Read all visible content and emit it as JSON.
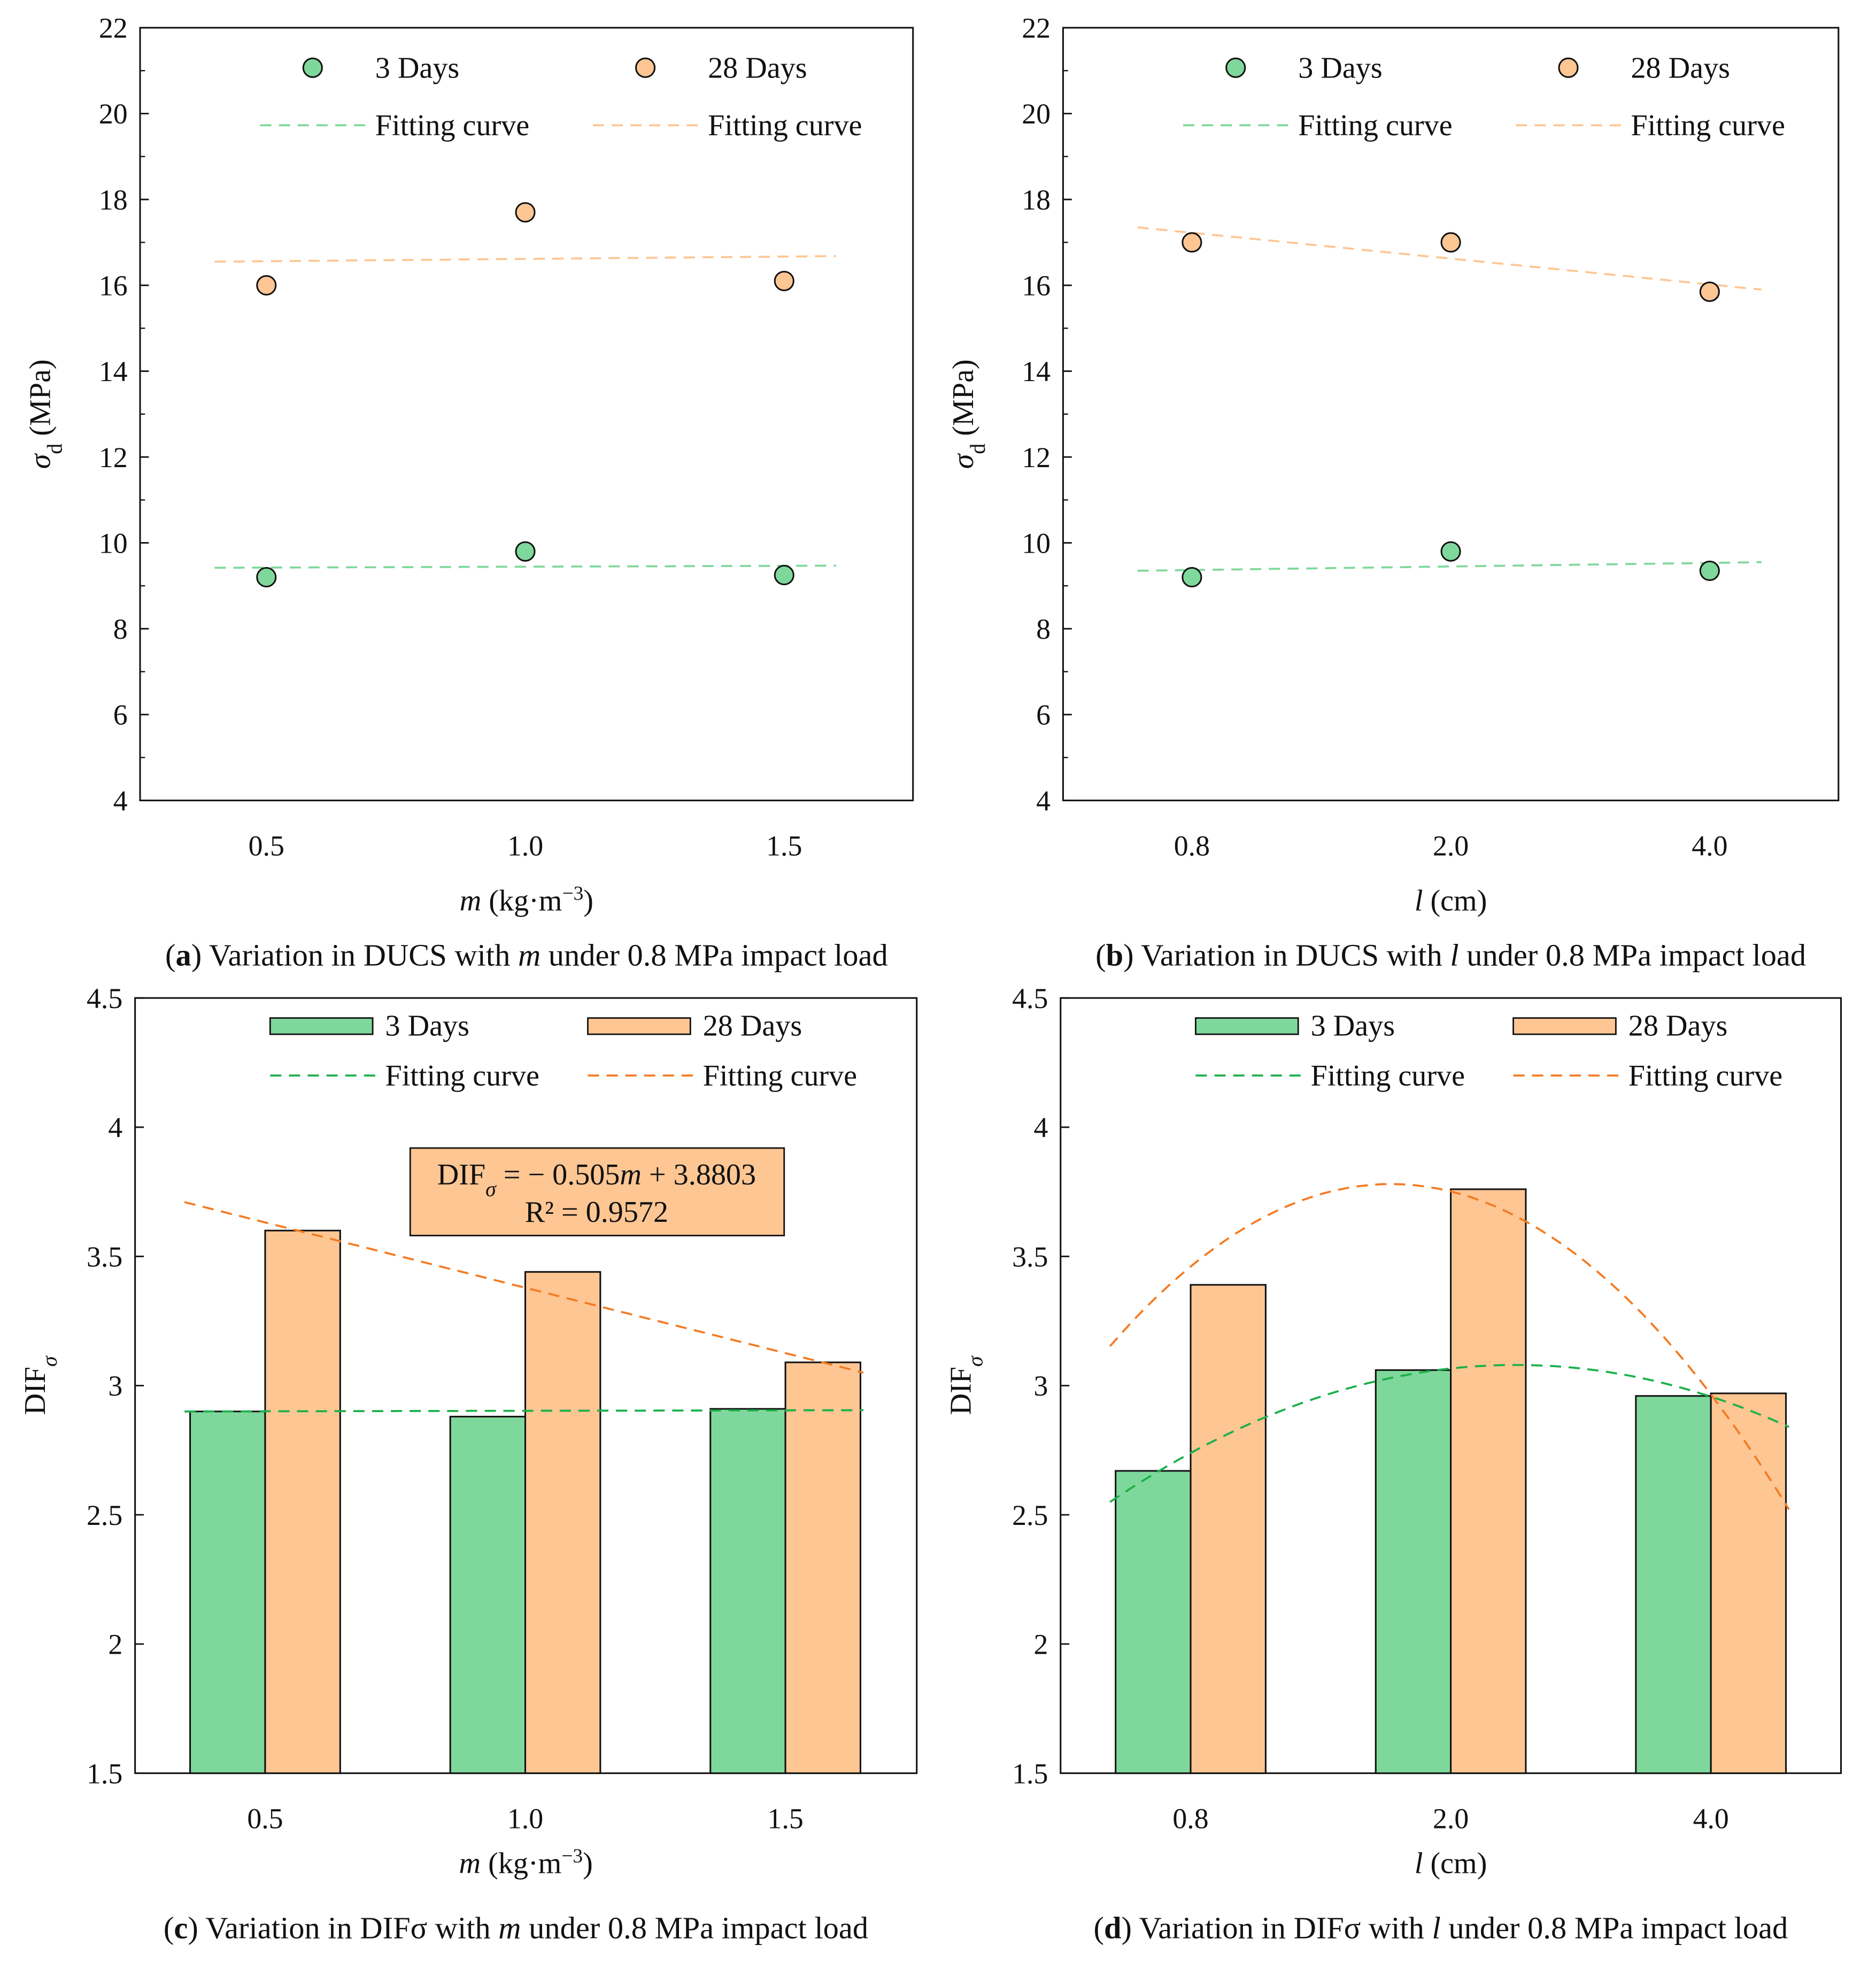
{
  "colors": {
    "green": "#7fd89b",
    "orange": "#fdc693",
    "green_line": "#1bb04a",
    "orange_line": "#f47a20",
    "green_line_light": "#7fd89b",
    "orange_line_light": "#fdc693"
  },
  "chart_data": [
    {
      "id": "a",
      "type": "scatter",
      "caption_letter": "a",
      "caption_pre": " Variation in DUCS with ",
      "caption_var": "m",
      "caption_post": " under 0.8 MPa impact load",
      "categories": [
        "0.5",
        "1.0",
        "1.5"
      ],
      "xlabel_var": "m",
      "xlabel_rest": " (kg·m",
      "xlabel_sup": "−3",
      "xlabel_close": ")",
      "ylabel_sym": "σ",
      "ylabel_sub": "d",
      "ylabel_rest": " (MPa)",
      "ylim": [
        4,
        22
      ],
      "yticks": [
        "4",
        "6",
        "8",
        "10",
        "12",
        "14",
        "16",
        "18",
        "20",
        "22"
      ],
      "legend": [
        "3 Days",
        "28 Days",
        "Fitting curve",
        "Fitting curve"
      ],
      "series": [
        {
          "name": "3 Days",
          "values": [
            9.2,
            9.8,
            9.25
          ]
        },
        {
          "name": "28 Days",
          "values": [
            16.0,
            17.7,
            16.1
          ]
        }
      ],
      "fits": [
        {
          "x": [
            -0.2,
            2.2
          ],
          "y": [
            9.42,
            9.47
          ]
        },
        {
          "x": [
            -0.2,
            2.2
          ],
          "y": [
            16.55,
            16.68
          ]
        }
      ]
    },
    {
      "id": "b",
      "type": "scatter",
      "caption_letter": "b",
      "caption_pre": " Variation in DUCS with ",
      "caption_var": "l",
      "caption_post": " under 0.8 MPa impact load",
      "categories": [
        "0.8",
        "2.0",
        "4.0"
      ],
      "xlabel_var": "l",
      "xlabel_rest": " (cm)",
      "xlabel_sup": "",
      "xlabel_close": "",
      "ylabel_sym": "σ",
      "ylabel_sub": "d",
      "ylabel_rest": " (MPa)",
      "ylim": [
        4,
        22
      ],
      "yticks": [
        "4",
        "6",
        "8",
        "10",
        "12",
        "14",
        "16",
        "18",
        "20",
        "22"
      ],
      "legend": [
        "3 Days",
        "28 Days",
        "Fitting curve",
        "Fitting curve"
      ],
      "series": [
        {
          "name": "3 Days",
          "values": [
            9.2,
            9.8,
            9.35
          ]
        },
        {
          "name": "28 Days",
          "values": [
            17.0,
            17.0,
            15.85
          ]
        }
      ],
      "fits": [
        {
          "x": [
            -0.21,
            2.2
          ],
          "y": [
            9.35,
            9.55
          ]
        },
        {
          "x": [
            -0.21,
            2.2
          ],
          "y": [
            17.35,
            15.9
          ]
        }
      ]
    },
    {
      "id": "c",
      "type": "bar",
      "caption_letter": "c",
      "caption_pre": " Variation in DIFσ with ",
      "caption_var": "m",
      "caption_post": " under 0.8 MPa impact load",
      "categories": [
        "0.5",
        "1.0",
        "1.5"
      ],
      "xlabel_var": "m",
      "xlabel_rest": " (kg·m",
      "xlabel_sup": "−3",
      "xlabel_close": ")",
      "ylabel_sym": "DIF",
      "ylabel_sub": "σ",
      "ylabel_rest": "",
      "ylim": [
        1.5,
        4.5
      ],
      "yticks": [
        "1.5",
        "2",
        "2.5",
        "3",
        "3.5",
        "4",
        "4.5"
      ],
      "legend": [
        "3 Days",
        "28 Days",
        "Fitting curve",
        "Fitting curve"
      ],
      "series": [
        {
          "name": "3 Days",
          "values": [
            2.9,
            2.88,
            2.91
          ]
        },
        {
          "name": "28 Days",
          "values": [
            3.6,
            3.44,
            3.09
          ]
        }
      ],
      "fits": [
        {
          "x": [
            -0.31,
            2.3
          ],
          "y": [
            2.9,
            2.905
          ]
        },
        {
          "x": [
            -0.31,
            2.3
          ],
          "y": [
            3.71,
            3.05
          ]
        }
      ],
      "annotation": {
        "line1_pre": "DIF",
        "line1_sub": "σ",
        "line1_mid": " = − 0.505",
        "line1_var": "m",
        "line1_post": " + 3.8803",
        "line2": "R² = 0.9572"
      }
    },
    {
      "id": "d",
      "type": "bar",
      "caption_letter": "d",
      "caption_pre": " Variation in DIFσ with ",
      "caption_var": "l",
      "caption_post": " under 0.8 MPa impact load",
      "categories": [
        "0.8",
        "2.0",
        "4.0"
      ],
      "xlabel_var": "l",
      "xlabel_rest": " (cm)",
      "xlabel_sup": "",
      "xlabel_close": "",
      "ylabel_sym": "DIF",
      "ylabel_sub": "σ",
      "ylabel_rest": "",
      "ylim": [
        1.5,
        4.5
      ],
      "yticks": [
        "1.5",
        "2",
        "2.5",
        "3",
        "3.5",
        "4",
        "4.5"
      ],
      "legend": [
        "3 Days",
        "28 Days",
        "Fitting curve",
        "Fitting curve"
      ],
      "series": [
        {
          "name": "3 Days",
          "values": [
            2.67,
            3.06,
            2.96
          ]
        },
        {
          "name": "28 Days",
          "values": [
            3.39,
            3.76,
            2.97
          ]
        }
      ],
      "fits": [
        {
          "quad": {
            "a": -0.218,
            "h": 1.25,
            "k": 3.08
          },
          "x": [
            -0.31,
            2.3
          ]
        },
        {
          "quad": {
            "a": -0.538,
            "h": 0.77,
            "k": 3.78
          },
          "x": [
            -0.31,
            2.3
          ]
        }
      ]
    }
  ]
}
